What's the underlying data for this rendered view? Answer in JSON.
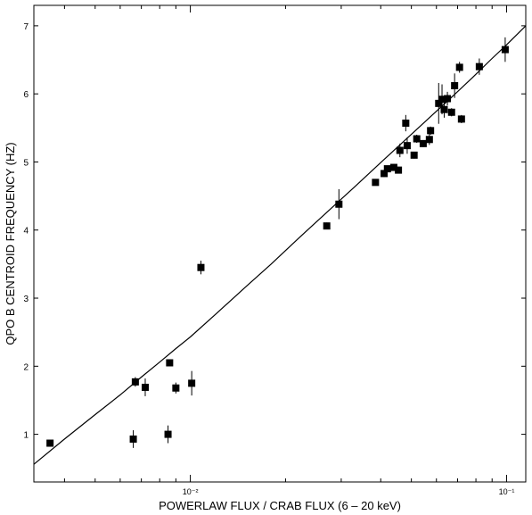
{
  "chart_data": {
    "type": "scatter",
    "title": "",
    "xlabel": "POWERLAW FLUX / CRAB FLUX (6 – 20 keV)",
    "ylabel": "QPO B CENTROID FREQUENCY (HZ)",
    "x_scale": "log",
    "xlim": [
      0.0032,
      0.115
    ],
    "ylim": [
      0.3,
      7.3
    ],
    "x_ticks": [
      {
        "value": 0.01,
        "label": "10⁻²"
      },
      {
        "value": 0.1,
        "label": "10⁻¹"
      }
    ],
    "y_ticks": [
      1,
      2,
      3,
      4,
      5,
      6,
      7
    ],
    "grid": false,
    "series": [
      {
        "kind": "points",
        "color": "#000000",
        "points": [
          {
            "x": 0.0036,
            "y": 0.87,
            "err": 0.03
          },
          {
            "x": 0.0066,
            "y": 0.93,
            "err": 0.13
          },
          {
            "x": 0.0067,
            "y": 1.77,
            "err": 0.07
          },
          {
            "x": 0.0072,
            "y": 1.69,
            "err": 0.13
          },
          {
            "x": 0.0085,
            "y": 1.0,
            "err": 0.13
          },
          {
            "x": 0.0086,
            "y": 2.05,
            "err": 0.05
          },
          {
            "x": 0.009,
            "y": 1.68,
            "err": 0.08
          },
          {
            "x": 0.0101,
            "y": 1.75,
            "err": 0.18
          },
          {
            "x": 0.0108,
            "y": 3.45,
            "err": 0.1
          },
          {
            "x": 0.027,
            "y": 4.06,
            "err": 0.05
          },
          {
            "x": 0.0295,
            "y": 4.38,
            "err": 0.22
          },
          {
            "x": 0.0385,
            "y": 4.7,
            "err": 0.04
          },
          {
            "x": 0.041,
            "y": 4.83,
            "err": 0.05
          },
          {
            "x": 0.042,
            "y": 4.9,
            "err": 0.04
          },
          {
            "x": 0.044,
            "y": 4.92,
            "err": 0.05
          },
          {
            "x": 0.0455,
            "y": 4.88,
            "err": 0.05
          },
          {
            "x": 0.046,
            "y": 5.17,
            "err": 0.1
          },
          {
            "x": 0.048,
            "y": 5.57,
            "err": 0.12
          },
          {
            "x": 0.0485,
            "y": 5.24,
            "err": 0.12
          },
          {
            "x": 0.051,
            "y": 5.1,
            "err": 0.05
          },
          {
            "x": 0.052,
            "y": 5.34,
            "err": 0.06
          },
          {
            "x": 0.0545,
            "y": 5.27,
            "err": 0.05
          },
          {
            "x": 0.057,
            "y": 5.33,
            "err": 0.08
          },
          {
            "x": 0.0575,
            "y": 5.46,
            "err": 0.06
          },
          {
            "x": 0.061,
            "y": 5.86,
            "err": 0.3
          },
          {
            "x": 0.0625,
            "y": 5.92,
            "err": 0.22
          },
          {
            "x": 0.0635,
            "y": 5.77,
            "err": 0.12
          },
          {
            "x": 0.065,
            "y": 5.93,
            "err": 0.1
          },
          {
            "x": 0.067,
            "y": 5.73,
            "err": 0.06
          },
          {
            "x": 0.0685,
            "y": 6.12,
            "err": 0.18
          },
          {
            "x": 0.071,
            "y": 6.39,
            "err": 0.08
          },
          {
            "x": 0.072,
            "y": 5.63,
            "err": 0.06
          },
          {
            "x": 0.082,
            "y": 6.4,
            "err": 0.12
          },
          {
            "x": 0.099,
            "y": 6.65,
            "err": 0.18
          }
        ]
      },
      {
        "kind": "curve",
        "color": "#000000",
        "points": [
          {
            "x": 0.0032,
            "y": 0.56
          },
          {
            "x": 0.004,
            "y": 0.93
          },
          {
            "x": 0.005,
            "y": 1.29
          },
          {
            "x": 0.006,
            "y": 1.58
          },
          {
            "x": 0.007,
            "y": 1.84
          },
          {
            "x": 0.008,
            "y": 2.06
          },
          {
            "x": 0.009,
            "y": 2.26
          },
          {
            "x": 0.01,
            "y": 2.43
          },
          {
            "x": 0.012,
            "y": 2.76
          },
          {
            "x": 0.015,
            "y": 3.17
          },
          {
            "x": 0.018,
            "y": 3.5
          },
          {
            "x": 0.022,
            "y": 3.88
          },
          {
            "x": 0.027,
            "y": 4.26
          },
          {
            "x": 0.033,
            "y": 4.63
          },
          {
            "x": 0.04,
            "y": 4.99
          },
          {
            "x": 0.048,
            "y": 5.33
          },
          {
            "x": 0.057,
            "y": 5.65
          },
          {
            "x": 0.067,
            "y": 5.95
          },
          {
            "x": 0.078,
            "y": 6.24
          },
          {
            "x": 0.09,
            "y": 6.52
          },
          {
            "x": 0.1,
            "y": 6.72
          },
          {
            "x": 0.115,
            "y": 7.0
          }
        ]
      }
    ]
  }
}
